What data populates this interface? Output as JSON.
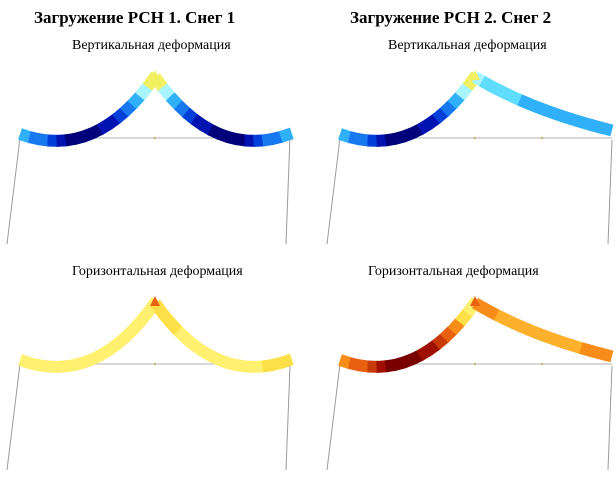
{
  "cases": [
    {
      "title": "Загружение РСН 1. Снег 1",
      "vertical_label": "Вертикальная деформация",
      "horizontal_label": "Горизонтальная деформация"
    },
    {
      "title": "Загружение РСН 2. Снег 2",
      "vertical_label": "Вертикальная деформация",
      "horizontal_label": "Горизонтальная деформация"
    }
  ],
  "palettes": {
    "vertical": [
      "#00007a",
      "#0012b0",
      "#0040d8",
      "#1878f0",
      "#30b0f8",
      "#60dcff",
      "#a8f4ff",
      "#f0f060"
    ],
    "horizontal": [
      "#7a0000",
      "#a01000",
      "#c83a08",
      "#e86010",
      "#f88c18",
      "#fcb02c",
      "#fde048",
      "#fff070"
    ]
  },
  "deformation_levels": {
    "case1_left": [
      0.55,
      0.48,
      0.36,
      0.22,
      0.08,
      0.0,
      0.0,
      0.0,
      0.02,
      0.08,
      0.16,
      0.3,
      0.46,
      0.62,
      0.8,
      0.95
    ],
    "case1_right_vertical": [
      0.95,
      0.8,
      0.62,
      0.46,
      0.3,
      0.16,
      0.08,
      0.02,
      0.0,
      0.0,
      0.0,
      0.08,
      0.22,
      0.36,
      0.48,
      0.55
    ],
    "case1_right_horizontal": [
      0.88,
      0.9,
      0.92,
      0.93,
      0.95,
      0.96,
      0.97,
      0.98,
      0.98,
      0.97,
      0.96,
      0.95,
      0.94,
      0.92,
      0.9,
      0.88
    ],
    "case2_right_vertical": [
      0.92,
      0.78,
      0.72,
      0.68,
      0.66,
      0.65,
      0.64,
      0.64,
      0.64,
      0.64,
      0.63,
      0.62,
      0.62,
      0.61,
      0.6,
      0.6
    ],
    "case2_right_horizontal": [
      0.52,
      0.6,
      0.64,
      0.66,
      0.67,
      0.68,
      0.68,
      0.68,
      0.68,
      0.68,
      0.67,
      0.66,
      0.65,
      0.64,
      0.62,
      0.6
    ]
  }
}
